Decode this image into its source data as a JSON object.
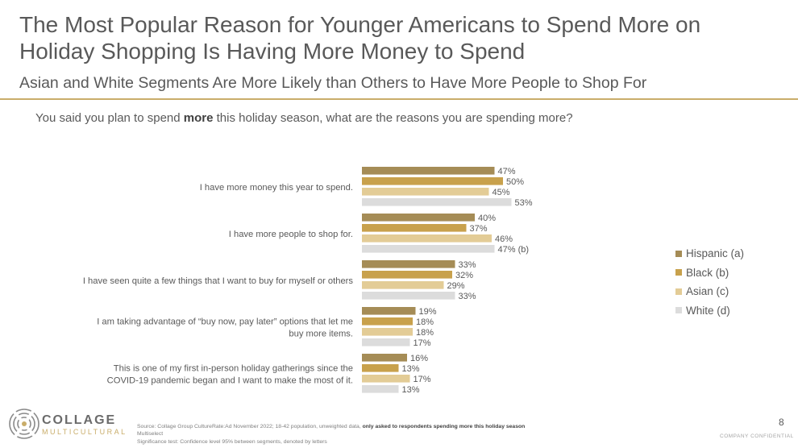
{
  "header": {
    "title": "The Most Popular Reason for Younger Americans to Spend More on Holiday Shopping Is Having More Money to Spend",
    "subtitle": "Asian and White Segments Are More Likely than Others to Have More People to Shop For"
  },
  "question": {
    "prefix": "You said you plan to spend ",
    "emphasis": "more",
    "suffix": " this holiday season, what are the reasons you are spending more?"
  },
  "chart_data": {
    "type": "bar",
    "orientation": "horizontal",
    "categories": [
      [
        "I have more money this year to spend."
      ],
      [
        "I have more people to shop for."
      ],
      [
        "I have seen quite a few things that I want to buy for myself or others"
      ],
      [
        "I am taking advantage of “buy now, pay later” options that let me",
        "buy more items."
      ],
      [
        "This is one of my first in-person holiday gatherings since the",
        "COVID-19 pandemic began and I want to make the most of it."
      ]
    ],
    "series": [
      {
        "name": "Hispanic (a)",
        "color": "#a58c56",
        "values": [
          47,
          40,
          33,
          19,
          16
        ],
        "labels": [
          "47%",
          "40%",
          "33%",
          "19%",
          "16%"
        ]
      },
      {
        "name": "Black (b)",
        "color": "#c8a14c",
        "values": [
          50,
          37,
          32,
          18,
          13
        ],
        "labels": [
          "50%",
          "37%",
          "32%",
          "18%",
          "13%"
        ]
      },
      {
        "name": "Asian (c)",
        "color": "#e3cc96",
        "values": [
          45,
          46,
          29,
          18,
          17
        ],
        "labels": [
          "45%",
          "46%",
          "29%",
          "18%",
          "17%"
        ]
      },
      {
        "name": "White (d)",
        "color": "#dcdcdc",
        "values": [
          53,
          47,
          33,
          17,
          13
        ],
        "labels": [
          "53%",
          "47% (b)",
          "33%",
          "17%",
          "13%"
        ]
      }
    ],
    "legend_position": "right",
    "grid": false
  },
  "footer": {
    "source_prefix": "Source: Collage Group CultureRate:Ad November 2022; 18-42 population, unweighted data, ",
    "source_bold": "only asked to respondents spending more this holiday season",
    "line2": "Multiselect",
    "line3": "Significance test: Confidence level 95% between segments, denoted by letters",
    "page_number": "8",
    "confidential": "COMPANY CONFIDENTIAL"
  },
  "logo": {
    "name": "COLLAGE",
    "tagline": "MULTICULTURAL",
    "icon": "collage-swirl-icon"
  }
}
